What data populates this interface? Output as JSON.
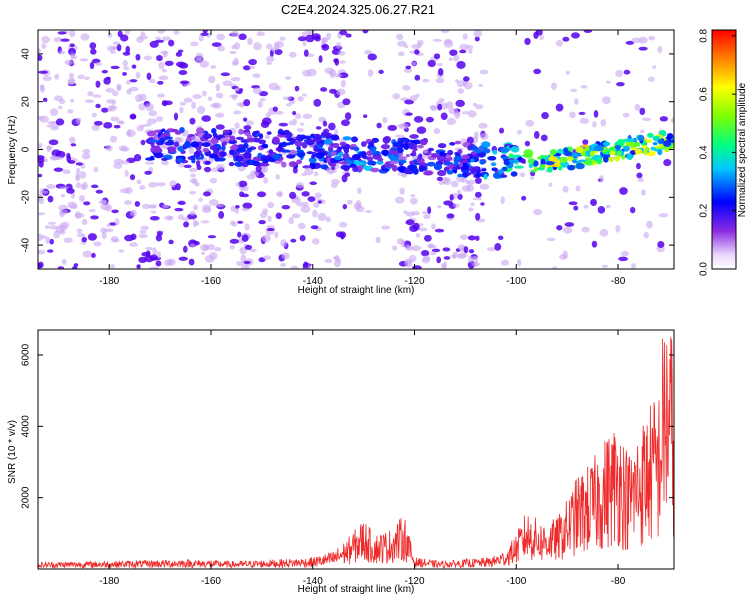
{
  "title": "C2E4.2024.325.06.27.R21",
  "colors": {
    "snr_line": "#ee2a2a",
    "scatter_core": "#5500ee",
    "scatter_halo": "#c9a6f2",
    "colorbar_stops": [
      "#ffffff",
      "#e9d6fb",
      "#8a2be2",
      "#0000ff",
      "#00c8ff",
      "#00ff80",
      "#7fff00",
      "#ffff00",
      "#ff8000",
      "#ff0000"
    ]
  },
  "chart_data": [
    {
      "type": "heatmap",
      "xlabel": "Height of straight line (km)",
      "ylabel": "Frequency (Hz)",
      "xlim": [
        -194,
        -69
      ],
      "ylim": [
        -50,
        50
      ],
      "x_ticks": [
        "-180",
        "-160",
        "-140",
        "-120",
        "-100",
        "-80"
      ],
      "x_tick_values": [
        -180,
        -160,
        -140,
        -120,
        -100,
        -80
      ],
      "y_ticks": [
        "-40",
        "-20",
        "0",
        "20",
        "40"
      ],
      "y_tick_values": [
        -40,
        -20,
        0,
        20,
        40
      ],
      "colorbar": {
        "label": "Normalized spectral amplitude",
        "ticks": [
          "0.0",
          "0.2",
          "0.4",
          "0.6",
          "0.8"
        ],
        "tick_values": [
          0.0,
          0.2,
          0.4,
          0.6,
          0.8
        ],
        "range": [
          0.0,
          0.82
        ]
      },
      "noise_gaps_km": [
        [
          -158,
          -156
        ],
        [
          -133,
          -123
        ],
        [
          -106,
          -101
        ]
      ],
      "signal_band": [
        {
          "km": -170,
          "hz": 2,
          "amp": 0.25
        },
        {
          "km": -160,
          "hz": 1,
          "amp": 0.22
        },
        {
          "km": -140,
          "hz": 0,
          "amp": 0.25
        },
        {
          "km": -130,
          "hz": -2,
          "amp": 0.3
        },
        {
          "km": -120,
          "hz": -3,
          "amp": 0.22
        },
        {
          "km": -110,
          "hz": -4,
          "amp": 0.25
        },
        {
          "km": -100,
          "hz": -5,
          "amp": 0.4
        },
        {
          "km": -95,
          "hz": -5,
          "amp": 0.5
        },
        {
          "km": -90,
          "hz": -4,
          "amp": 0.6
        },
        {
          "km": -85,
          "hz": -2,
          "amp": 0.55
        },
        {
          "km": -80,
          "hz": 0,
          "amp": 0.5
        },
        {
          "km": -75,
          "hz": 2,
          "amp": 0.55
        },
        {
          "km": -70,
          "hz": 3,
          "amp": 0.5
        }
      ]
    },
    {
      "type": "line",
      "xlabel": "Height of straight line (km)",
      "ylabel": "SNR (10 * v/v)",
      "xlim": [
        -194,
        -69
      ],
      "ylim": [
        0,
        6700
      ],
      "x_ticks": [
        "-180",
        "-160",
        "-140",
        "-120",
        "-100",
        "-80"
      ],
      "x_tick_values": [
        -180,
        -160,
        -140,
        -120,
        -100,
        -80
      ],
      "y_ticks": [
        "2000",
        "4000",
        "6000"
      ],
      "y_tick_values": [
        2000,
        4000,
        6000
      ],
      "series": [
        {
          "x": [
            -194,
            -185,
            -175,
            -165,
            -155,
            -145,
            -140,
            -136,
            -133,
            -130,
            -128,
            -125,
            -122,
            -120,
            -115,
            -110,
            -105,
            -102,
            -100,
            -98,
            -95,
            -92,
            -90,
            -88,
            -85,
            -82,
            -80,
            -78,
            -76,
            -74,
            -72,
            -71,
            -70,
            -69
          ],
          "y": [
            180,
            200,
            220,
            250,
            200,
            260,
            300,
            450,
            800,
            1300,
            900,
            1000,
            1400,
            300,
            200,
            250,
            300,
            500,
            900,
            1500,
            1200,
            1300,
            1800,
            2400,
            2800,
            3500,
            3900,
            3000,
            3600,
            4200,
            4600,
            6500,
            6700,
            5600
          ]
        }
      ]
    }
  ]
}
